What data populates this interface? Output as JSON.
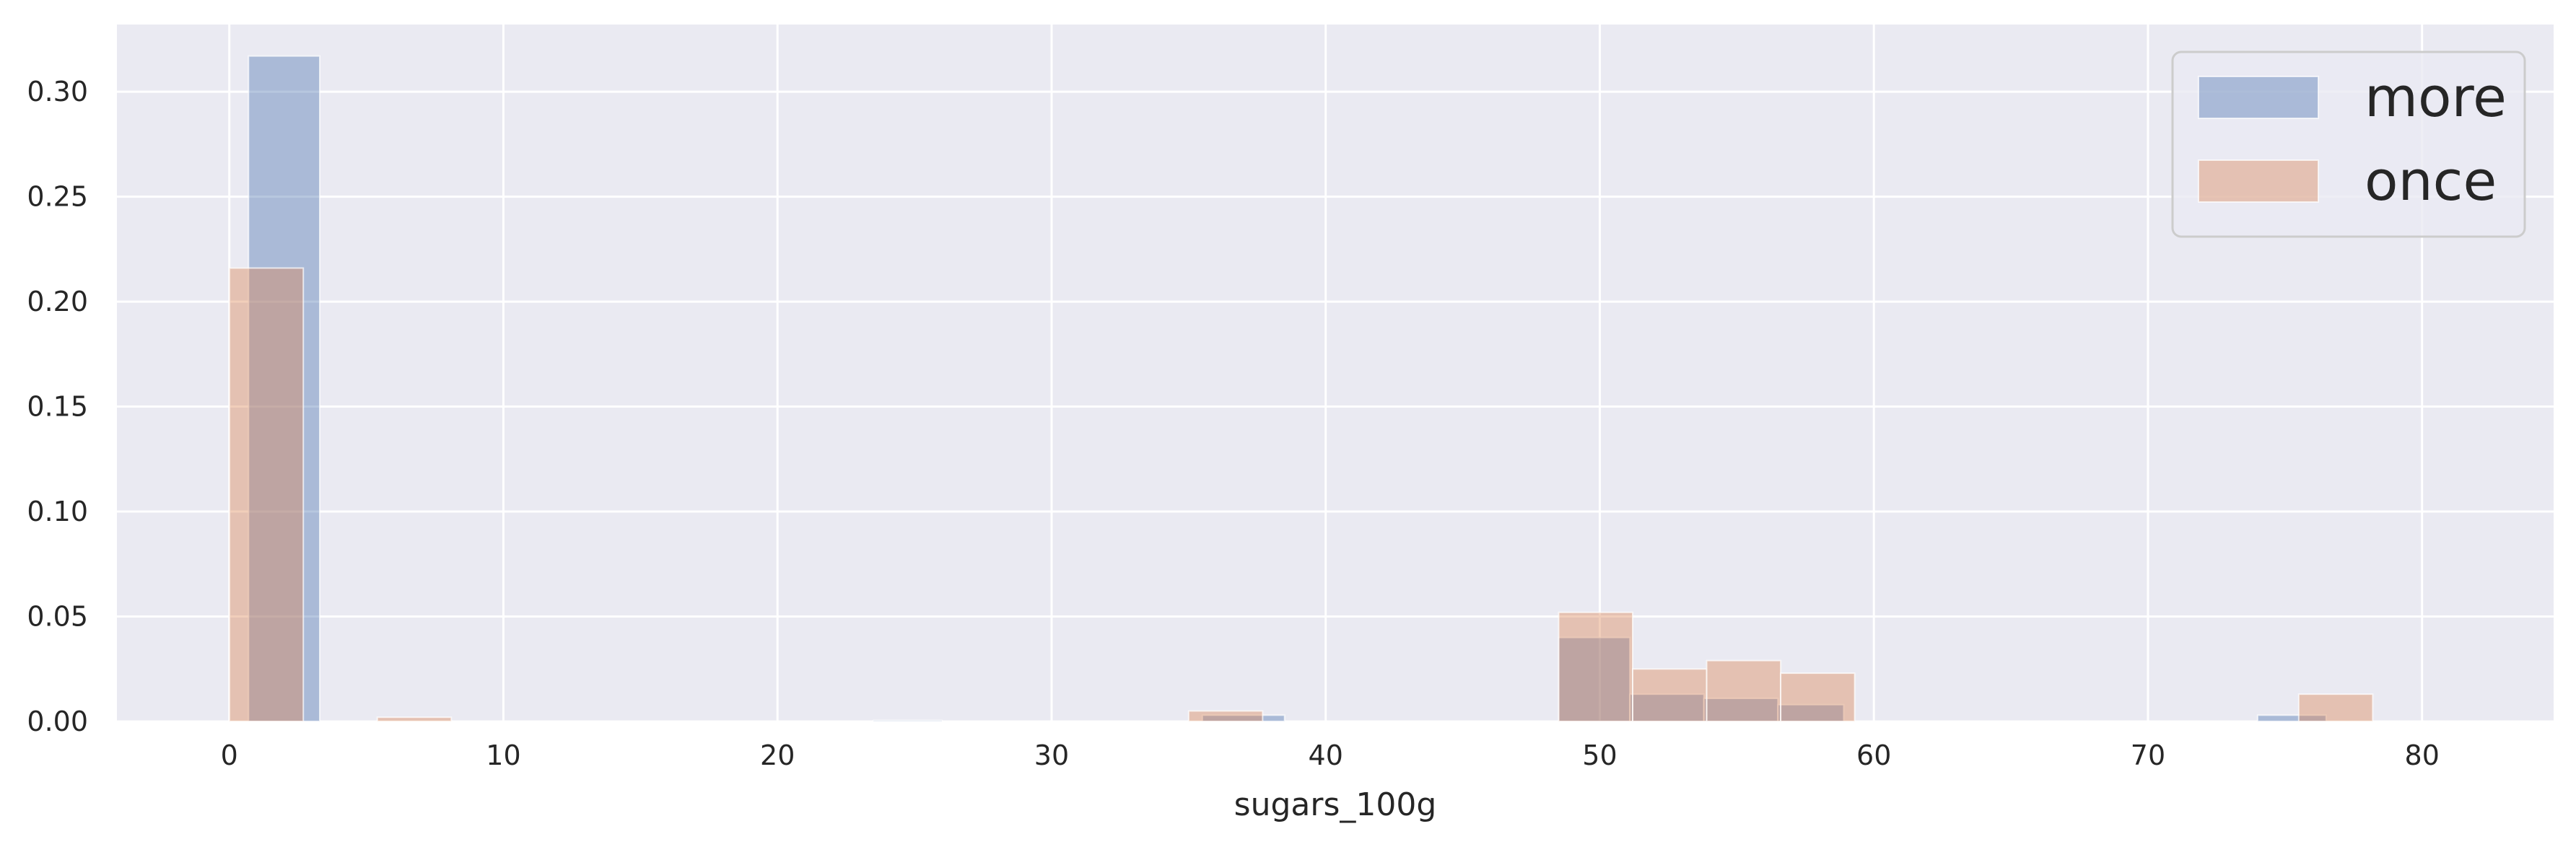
{
  "chart_data": {
    "type": "bar",
    "title": "",
    "xlabel": "sugars_100g",
    "ylabel": "",
    "xlim": [
      -4.1,
      84.8
    ],
    "ylim": [
      0,
      0.332
    ],
    "xticks": [
      0,
      10,
      20,
      30,
      40,
      50,
      60,
      70,
      80
    ],
    "yticks": [
      0.0,
      0.05,
      0.1,
      0.15,
      0.2,
      0.25,
      0.3
    ],
    "ytick_labels": [
      "0.00",
      "0.05",
      "0.10",
      "0.15",
      "0.20",
      "0.25",
      "0.30"
    ],
    "grid": true,
    "legend_position": "top-right",
    "series": [
      {
        "name": "more",
        "color": "#4c72b0",
        "bins": [
          {
            "x0": 0.7,
            "x1": 3.3,
            "value": 0.317
          },
          {
            "x0": 23.5,
            "x1": 26.0,
            "value": 0.0005
          },
          {
            "x0": 35.5,
            "x1": 38.5,
            "value": 0.003
          },
          {
            "x0": 48.5,
            "x1": 51.1,
            "value": 0.04
          },
          {
            "x0": 51.1,
            "x1": 53.8,
            "value": 0.013
          },
          {
            "x0": 53.8,
            "x1": 56.5,
            "value": 0.011
          },
          {
            "x0": 56.5,
            "x1": 58.9,
            "value": 0.008
          },
          {
            "x0": 74.0,
            "x1": 76.5,
            "value": 0.003
          }
        ]
      },
      {
        "name": "once",
        "color": "#dd8452",
        "bins": [
          {
            "x0": 0.0,
            "x1": 2.7,
            "value": 0.216
          },
          {
            "x0": 5.4,
            "x1": 8.1,
            "value": 0.002
          },
          {
            "x0": 35.0,
            "x1": 37.7,
            "value": 0.005
          },
          {
            "x0": 48.5,
            "x1": 51.2,
            "value": 0.052
          },
          {
            "x0": 51.2,
            "x1": 53.9,
            "value": 0.025
          },
          {
            "x0": 53.9,
            "x1": 56.6,
            "value": 0.029
          },
          {
            "x0": 56.6,
            "x1": 59.3,
            "value": 0.023
          },
          {
            "x0": 75.5,
            "x1": 78.2,
            "value": 0.013
          }
        ]
      }
    ]
  }
}
